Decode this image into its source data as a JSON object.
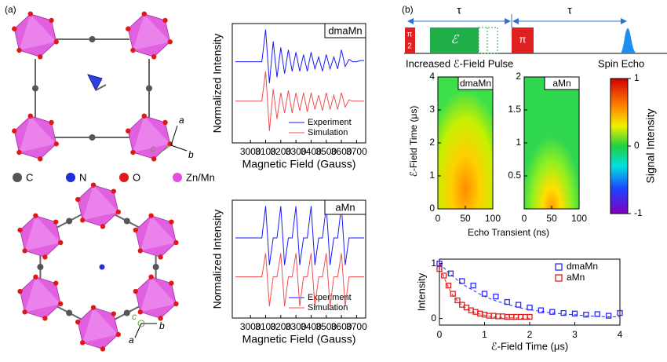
{
  "panel_a": {
    "label": "(a)",
    "axis_labels": [
      "a",
      "b",
      "c",
      "a",
      "b",
      "c"
    ],
    "legend": [
      {
        "name": "C",
        "color": "#555555"
      },
      {
        "name": "N",
        "color": "#1f2fd6"
      },
      {
        "name": "O",
        "color": "#e01818"
      },
      {
        "name": "Zn/Mn",
        "color": "#e04fe0"
      }
    ]
  },
  "panel_b": {
    "label": "(b)",
    "tau": "τ",
    "pi_top": "π",
    "pi_bottom": "2",
    "field": "ℰ",
    "pi": "π",
    "pulse_caption": "Increased ℰ-Field Pulse",
    "echo_caption": "Spin Echo",
    "heatmap_xlabel": "Echo Transient (ns)",
    "heatmap_ylabel": "ℰ-Field Time (μs)"
  },
  "chart_data": [
    {
      "type": "line",
      "title": "dmaMn",
      "xlabel": "Magnetic Field (Gauss)",
      "ylabel": "Normalized Intensity",
      "xlim": [
        2880,
        3760
      ],
      "xticks": [
        3000,
        3100,
        3200,
        3300,
        3400,
        3500,
        3600,
        3700
      ],
      "ylim": [
        0,
        1
      ],
      "x": [
        2900,
        2925,
        2950,
        2975,
        3000,
        3025,
        3050,
        3075,
        3100,
        3125,
        3150,
        3175,
        3200,
        3225,
        3250,
        3275,
        3300,
        3325,
        3350,
        3375,
        3400,
        3425,
        3450,
        3475,
        3500,
        3525,
        3550,
        3575,
        3600,
        3625,
        3650,
        3675,
        3700,
        3725,
        3750
      ],
      "series": [
        {
          "name": "Experiment",
          "color": "#1a1aff",
          "values": [
            0.68,
            0.68,
            0.68,
            0.68,
            0.68,
            0.68,
            0.68,
            0.68,
            0.95,
            0.5,
            0.85,
            0.55,
            0.8,
            0.58,
            0.78,
            0.6,
            0.76,
            0.6,
            0.74,
            0.6,
            0.76,
            0.62,
            0.72,
            0.6,
            0.74,
            0.62,
            0.72,
            0.62,
            0.78,
            0.64,
            0.7,
            0.68,
            0.68,
            0.69,
            0.69
          ]
        },
        {
          "name": "Simulation",
          "color": "#f05050",
          "values": [
            0.35,
            0.35,
            0.35,
            0.35,
            0.35,
            0.35,
            0.35,
            0.35,
            0.6,
            0.1,
            0.45,
            0.2,
            0.42,
            0.25,
            0.44,
            0.25,
            0.42,
            0.27,
            0.42,
            0.26,
            0.42,
            0.28,
            0.4,
            0.27,
            0.42,
            0.28,
            0.4,
            0.28,
            0.42,
            0.3,
            0.36,
            0.35,
            0.35,
            0.35,
            0.35
          ]
        }
      ]
    },
    {
      "type": "line",
      "title": "aMn",
      "xlabel": "Magnetic Field (Gauss)",
      "ylabel": "Normalized Intensity",
      "xlim": [
        2880,
        3760
      ],
      "xticks": [
        3000,
        3100,
        3200,
        3300,
        3400,
        3500,
        3600,
        3700
      ],
      "ylim": [
        0,
        1
      ],
      "x": [
        2900,
        2925,
        2950,
        2975,
        3000,
        3025,
        3050,
        3075,
        3100,
        3125,
        3150,
        3175,
        3200,
        3225,
        3250,
        3275,
        3300,
        3325,
        3350,
        3375,
        3400,
        3425,
        3450,
        3475,
        3500,
        3525,
        3550,
        3575,
        3600,
        3625,
        3650,
        3675,
        3700,
        3725,
        3750
      ],
      "series": [
        {
          "name": "Experiment",
          "color": "#1a1aff",
          "values": [
            0.68,
            0.68,
            0.68,
            0.68,
            0.68,
            0.68,
            0.68,
            0.68,
            0.95,
            0.45,
            0.68,
            0.68,
            0.95,
            0.45,
            0.68,
            0.68,
            0.95,
            0.45,
            0.68,
            0.68,
            0.95,
            0.45,
            0.68,
            0.68,
            0.95,
            0.45,
            0.68,
            0.68,
            0.95,
            0.45,
            0.68,
            0.68,
            0.68,
            0.68,
            0.68
          ]
        },
        {
          "name": "Simulation",
          "color": "#f05050",
          "values": [
            0.35,
            0.35,
            0.35,
            0.35,
            0.35,
            0.35,
            0.35,
            0.35,
            0.55,
            0.1,
            0.35,
            0.35,
            0.55,
            0.1,
            0.35,
            0.35,
            0.55,
            0.1,
            0.35,
            0.35,
            0.55,
            0.1,
            0.35,
            0.35,
            0.55,
            0.1,
            0.35,
            0.35,
            0.55,
            0.1,
            0.35,
            0.35,
            0.35,
            0.35,
            0.35
          ]
        }
      ]
    },
    {
      "type": "heatmap",
      "title": "dmaMn",
      "xlim": [
        0,
        100
      ],
      "xticks": [
        0,
        50,
        100
      ],
      "ylim": [
        0,
        4
      ],
      "yticks": [
        0,
        1,
        2,
        3,
        4
      ]
    },
    {
      "type": "heatmap",
      "title": "aMn",
      "xlim": [
        0,
        100
      ],
      "xticks": [
        0,
        50,
        100
      ],
      "ylim": [
        0,
        2
      ],
      "yticks": [
        0.5,
        1,
        1.5,
        2
      ]
    },
    {
      "type": "colorbar",
      "label": "Signal Intensity",
      "ylim": [
        -1,
        1
      ],
      "yticks": [
        -1,
        0,
        1
      ]
    },
    {
      "type": "scatter",
      "xlabel": "ℰ-Field Time (μs)",
      "ylabel": "Intensity",
      "xlim": [
        0,
        4
      ],
      "xticks": [
        0,
        1,
        2,
        3,
        4
      ],
      "ylim": [
        -0.12,
        1.08
      ],
      "yticks": [
        0,
        1
      ],
      "series": [
        {
          "name": "dmaMn",
          "color": "#2a2aff",
          "x": [
            0,
            0.25,
            0.5,
            0.75,
            1,
            1.25,
            1.5,
            1.75,
            2,
            2.25,
            2.5,
            2.75,
            3,
            3.25,
            3.5,
            3.75,
            4
          ],
          "values": [
            1,
            0.82,
            0.68,
            0.6,
            0.45,
            0.4,
            0.3,
            0.25,
            0.2,
            0.15,
            0.12,
            0.1,
            0.09,
            0.07,
            0.08,
            0.05,
            0.1
          ],
          "fit": [
            1,
            0.8,
            0.63,
            0.51,
            0.4,
            0.32,
            0.26,
            0.2,
            0.16,
            0.13,
            0.1,
            0.08,
            0.07,
            0.05,
            0.04,
            0.03,
            0.03
          ]
        },
        {
          "name": "aMn",
          "color": "#e02020",
          "x": [
            0,
            0.1,
            0.2,
            0.3,
            0.4,
            0.5,
            0.6,
            0.7,
            0.8,
            0.9,
            1,
            1.1,
            1.2,
            1.3,
            1.4,
            1.5,
            1.6,
            1.7,
            1.8,
            1.9,
            2
          ],
          "values": [
            0.9,
            0.78,
            0.6,
            0.45,
            0.33,
            0.25,
            0.2,
            0.15,
            0.12,
            0.09,
            0.07,
            0.05,
            0.05,
            0.04,
            0.04,
            0.03,
            0.03,
            0.03,
            0.03,
            0.03,
            0.03
          ],
          "fit": [
            1,
            0.75,
            0.56,
            0.42,
            0.32,
            0.24,
            0.18,
            0.14,
            0.1,
            0.08,
            0.06,
            0.04,
            0.03,
            0.02,
            0.02,
            0.01,
            0.01,
            0.01,
            0,
            0,
            0
          ]
        }
      ]
    }
  ]
}
